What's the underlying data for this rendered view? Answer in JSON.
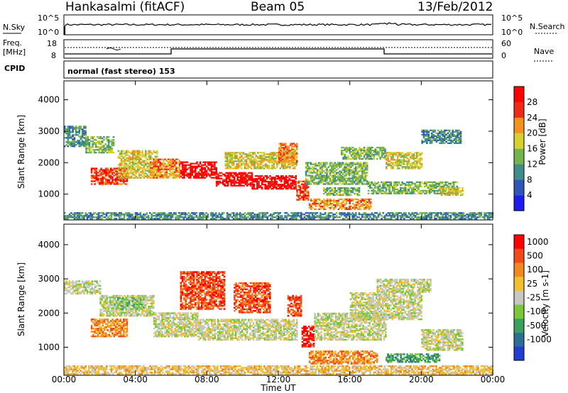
{
  "header": {
    "station": "Hankasalmi (fitACF)",
    "beam": "Beam 05",
    "date": "13/Feb/2012",
    "cpid_label": "CPID",
    "cpid_value": "normal (fast stereo) 153"
  },
  "top_panels": {
    "nsky": {
      "left_label": "N.Sky",
      "right_label": "N.Search",
      "left_ticks": [
        "10^5",
        "10^0"
      ],
      "right_ticks": [
        "10^5",
        "10^0"
      ]
    },
    "freq": {
      "left_label_line1": "Freq.",
      "left_label_line2": "[MHz]",
      "left_ticks": [
        "18",
        "8"
      ],
      "right_label": "Nave",
      "right_ticks": [
        "60",
        "0"
      ]
    }
  },
  "x_axis": {
    "label": "Time UT",
    "ticks": [
      "00:00",
      "04:00",
      "08:00",
      "12:00",
      "16:00",
      "20:00",
      "00:00"
    ]
  },
  "chart_data": [
    {
      "type": "heatmap",
      "name": "power",
      "ylabel": "Slant Range [km]",
      "yticks": [
        "1000",
        "2000",
        "3000",
        "4000"
      ],
      "colorbar_label": "Power [dB]",
      "colorbar_ticks": [
        "4",
        "8",
        "12",
        "16",
        "20",
        "24",
        "28"
      ],
      "colorbar_colors": [
        "#1c1cf0",
        "#2f56b6",
        "#3f8d8a",
        "#74b44e",
        "#d6d030",
        "#f5921e",
        "#ee2a1a",
        "#ff0000"
      ],
      "xlim": [
        0,
        24
      ],
      "ylim": [
        180,
        4600
      ],
      "regions": [
        {
          "t0": 0.0,
          "t1": 1.2,
          "r0": 2500,
          "r1": 3150,
          "level": 2
        },
        {
          "t0": 1.2,
          "t1": 2.8,
          "r0": 2300,
          "r1": 2800,
          "level": 3
        },
        {
          "t0": 1.5,
          "t1": 3.5,
          "r0": 1300,
          "r1": 1800,
          "level": 6
        },
        {
          "t0": 3.0,
          "t1": 5.2,
          "r0": 1500,
          "r1": 2400,
          "level": 4
        },
        {
          "t0": 4.8,
          "t1": 6.5,
          "r0": 1500,
          "r1": 2100,
          "level": 5
        },
        {
          "t0": 6.5,
          "t1": 8.5,
          "r0": 1500,
          "r1": 2000,
          "level": 7
        },
        {
          "t0": 8.5,
          "t1": 10.5,
          "r0": 1250,
          "r1": 1700,
          "level": 7
        },
        {
          "t0": 10.5,
          "t1": 13.0,
          "r0": 1150,
          "r1": 1600,
          "level": 7
        },
        {
          "t0": 13.0,
          "t1": 13.7,
          "r0": 800,
          "r1": 1400,
          "level": 6
        },
        {
          "t0": 9.0,
          "t1": 13.0,
          "r0": 1800,
          "r1": 2300,
          "level": 4
        },
        {
          "t0": 12.0,
          "t1": 13.0,
          "r0": 2000,
          "r1": 2600,
          "level": 5
        },
        {
          "t0": 13.5,
          "t1": 17.0,
          "r0": 1300,
          "r1": 2000,
          "level": 3
        },
        {
          "t0": 13.7,
          "t1": 17.2,
          "r0": 500,
          "r1": 850,
          "level": 5
        },
        {
          "t0": 14.5,
          "t1": 16.5,
          "r0": 950,
          "r1": 1200,
          "level": 3
        },
        {
          "t0": 15.5,
          "t1": 18.0,
          "r0": 2100,
          "r1": 2500,
          "level": 3
        },
        {
          "t0": 18.0,
          "t1": 20.0,
          "r0": 1800,
          "r1": 2300,
          "level": 4
        },
        {
          "t0": 17.0,
          "t1": 22.0,
          "r0": 1000,
          "r1": 1400,
          "level": 3
        },
        {
          "t0": 20.0,
          "t1": 22.2,
          "r0": 2600,
          "r1": 3050,
          "level": 2
        },
        {
          "t0": 21.0,
          "t1": 22.3,
          "r0": 950,
          "r1": 1200,
          "level": 4
        },
        {
          "t0": 0.0,
          "t1": 24.0,
          "r0": 200,
          "r1": 400,
          "level": 2
        }
      ]
    },
    {
      "type": "heatmap",
      "name": "velocity",
      "ylabel": "Slant Range [km]",
      "yticks": [
        "1000",
        "2000",
        "3000",
        "4000"
      ],
      "colorbar_label": "Velocity [m s-1]",
      "colorbar_ticks": [
        "1000",
        "500",
        "100",
        "25",
        "-25",
        "-100",
        "-500",
        "-1000"
      ],
      "colorbar_colors": [
        "#1f3fd0",
        "#2b6f96",
        "#3aa15c",
        "#78c83a",
        "#c8c8c0",
        "#f0c030",
        "#f08a20",
        "#f04a1a",
        "#ff0000"
      ],
      "xlim": [
        0,
        24
      ],
      "ylim": [
        180,
        4600
      ],
      "regions": [
        {
          "t0": 0.0,
          "t1": 2.0,
          "r0": 2550,
          "r1": 2950,
          "level": 4
        },
        {
          "t0": 2.0,
          "t1": 5.0,
          "r0": 1900,
          "r1": 2500,
          "level": 4
        },
        {
          "t0": 1.5,
          "t1": 3.5,
          "r0": 1300,
          "r1": 1800,
          "level": 6
        },
        {
          "t0": 2.8,
          "t1": 4.5,
          "r0": 2100,
          "r1": 2450,
          "level": 3
        },
        {
          "t0": 5.0,
          "t1": 7.5,
          "r0": 1300,
          "r1": 2000,
          "level": 4
        },
        {
          "t0": 6.5,
          "t1": 9.0,
          "r0": 2100,
          "r1": 3200,
          "level": 7
        },
        {
          "t0": 7.5,
          "t1": 13.0,
          "r0": 1200,
          "r1": 1800,
          "level": 4
        },
        {
          "t0": 9.5,
          "t1": 11.5,
          "r0": 2000,
          "r1": 2900,
          "level": 7
        },
        {
          "t0": 12.5,
          "t1": 13.3,
          "r0": 1900,
          "r1": 2500,
          "level": 7
        },
        {
          "t0": 13.3,
          "t1": 14.0,
          "r0": 1000,
          "r1": 1600,
          "level": 8
        },
        {
          "t0": 13.7,
          "t1": 17.5,
          "r0": 500,
          "r1": 900,
          "level": 6
        },
        {
          "t0": 14.0,
          "t1": 18.0,
          "r0": 1200,
          "r1": 2000,
          "level": 4
        },
        {
          "t0": 16.0,
          "t1": 20.0,
          "r0": 1800,
          "r1": 2600,
          "level": 4
        },
        {
          "t0": 17.5,
          "t1": 20.5,
          "r0": 2600,
          "r1": 3000,
          "level": 4
        },
        {
          "t0": 18.0,
          "t1": 21.0,
          "r0": 550,
          "r1": 800,
          "level": 2
        },
        {
          "t0": 20.0,
          "t1": 22.3,
          "r0": 900,
          "r1": 1500,
          "level": 4
        },
        {
          "t0": 0.0,
          "t1": 24.0,
          "r0": 200,
          "r1": 450,
          "level": 5
        }
      ]
    }
  ]
}
